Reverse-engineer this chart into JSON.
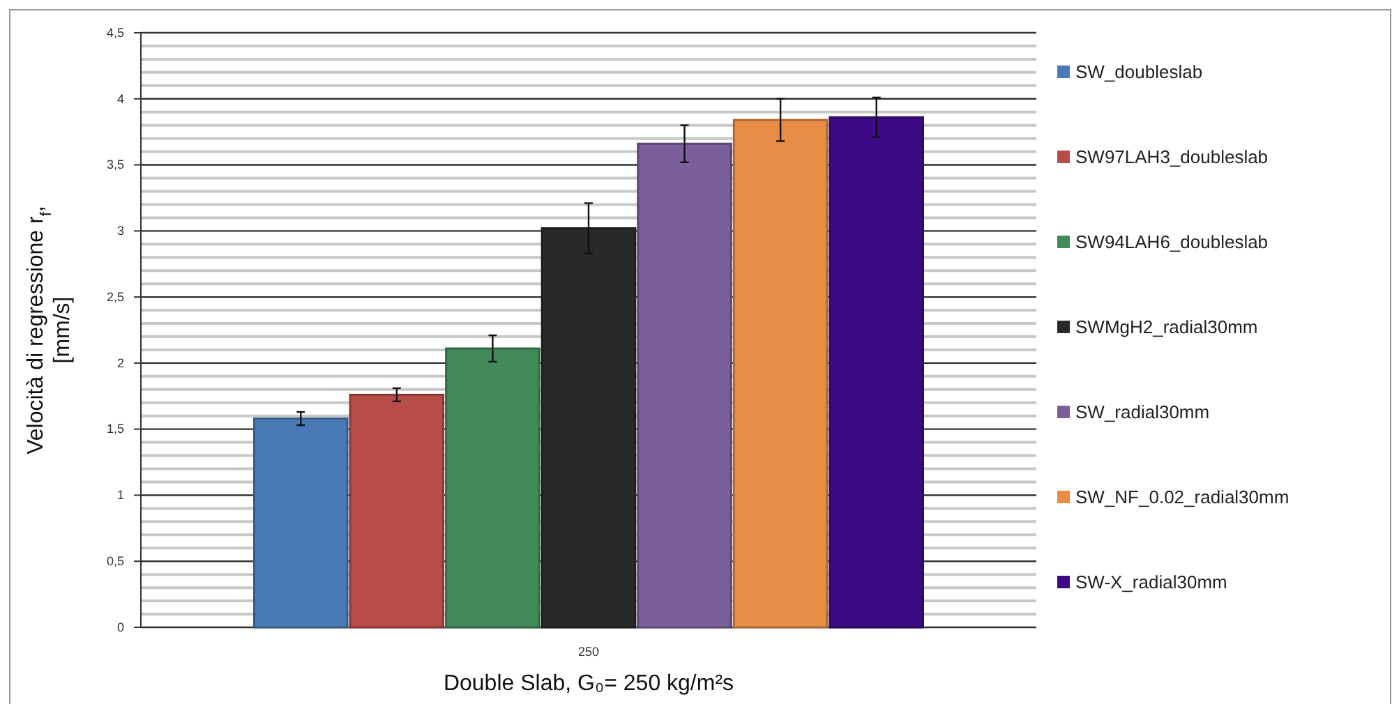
{
  "chart_data": {
    "type": "bar",
    "xlabel": "Double Slab, G₀= 250  kg/m²s",
    "ylabel": "Velocità di regressione r$_{f}$, [mm/s]",
    "categories": [
      "250"
    ],
    "series": [
      {
        "name": "SW_doubleslab",
        "color": "#4a7ab5",
        "values": [
          1.58
        ],
        "errors": [
          0.05
        ]
      },
      {
        "name": "SW97LAH3_doubleslab",
        "color": "#b84c48",
        "values": [
          1.76
        ],
        "errors": [
          0.05
        ]
      },
      {
        "name": "SW94LAH6_doubleslab",
        "color": "#428a5a",
        "values": [
          2.11
        ],
        "errors": [
          0.1
        ]
      },
      {
        "name": "SWMgH2_radial30mm",
        "color": "#292929",
        "values": [
          3.02
        ],
        "errors": [
          0.19
        ]
      },
      {
        "name": "SW_radial30mm",
        "color": "#7a5f9a",
        "values": [
          3.66
        ],
        "errors": [
          0.14
        ]
      },
      {
        "name": "SW_NF_0.02_radial30mm",
        "color": "#e88d45",
        "values": [
          3.84
        ],
        "errors": [
          0.16
        ]
      },
      {
        "name": "SW-X_radial30mm",
        "color": "#3d0a85",
        "values": [
          3.86
        ],
        "errors": [
          0.15
        ]
      }
    ],
    "ylim": [
      0,
      4.5
    ],
    "yticks": [
      {
        "value": 0,
        "label": "0"
      },
      {
        "value": 0.1,
        "label": null
      },
      {
        "value": 0.2,
        "label": null
      },
      {
        "value": 0.3,
        "label": null
      },
      {
        "value": 0.4,
        "label": null
      },
      {
        "value": 0.5,
        "label": "0,5"
      },
      {
        "value": 0.6,
        "label": null
      },
      {
        "value": 0.7,
        "label": null
      },
      {
        "value": 0.8,
        "label": null
      },
      {
        "value": 0.9,
        "label": null
      },
      {
        "value": 1,
        "label": "1"
      },
      {
        "value": 1.1,
        "label": null
      },
      {
        "value": 1.2,
        "label": null
      },
      {
        "value": 1.3,
        "label": null
      },
      {
        "value": 1.4,
        "label": null
      },
      {
        "value": 1.5,
        "label": "1,5"
      },
      {
        "value": 1.6,
        "label": null
      },
      {
        "value": 1.7,
        "label": null
      },
      {
        "value": 1.8,
        "label": null
      },
      {
        "value": 1.9,
        "label": null
      },
      {
        "value": 2,
        "label": "2"
      },
      {
        "value": 2.1,
        "label": null
      },
      {
        "value": 2.2,
        "label": null
      },
      {
        "value": 2.3,
        "label": null
      },
      {
        "value": 2.4,
        "label": null
      },
      {
        "value": 2.5,
        "label": "2,5"
      },
      {
        "value": 2.6,
        "label": null
      },
      {
        "value": 2.7,
        "label": null
      },
      {
        "value": 2.8,
        "label": null
      },
      {
        "value": 2.9,
        "label": null
      },
      {
        "value": 3,
        "label": "3"
      },
      {
        "value": 3.1,
        "label": null
      },
      {
        "value": 3.2,
        "label": null
      },
      {
        "value": 3.3,
        "label": null
      },
      {
        "value": 3.4,
        "label": null
      },
      {
        "value": 3.5,
        "label": "3,5"
      },
      {
        "value": 3.6,
        "label": null
      },
      {
        "value": 3.7,
        "label": null
      },
      {
        "value": 3.8,
        "label": null
      },
      {
        "value": 3.9,
        "label": null
      },
      {
        "value": 4,
        "label": "4"
      },
      {
        "value": 4.1,
        "label": null
      },
      {
        "value": 4.2,
        "label": null
      },
      {
        "value": 4.3,
        "label": null
      },
      {
        "value": 4.4,
        "label": null
      },
      {
        "value": 4.5,
        "label": "4,5"
      }
    ],
    "grid": "y",
    "legend": "right"
  }
}
